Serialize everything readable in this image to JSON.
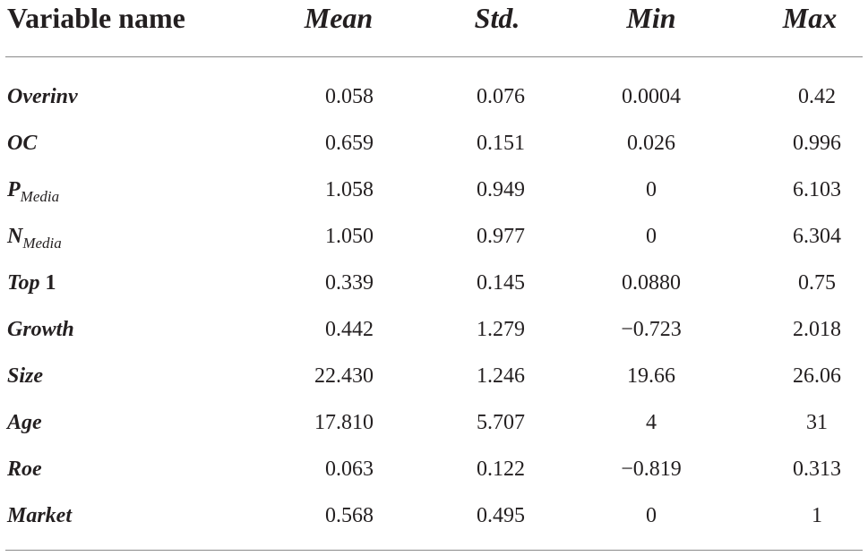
{
  "header": [
    "Variable name",
    "Mean",
    "Std.",
    "Min",
    "Max"
  ],
  "rows": [
    {
      "variable": {
        "main": "Overinv"
      },
      "values": [
        "0.058",
        "0.076",
        "0.0004",
        "0.42"
      ]
    },
    {
      "variable": {
        "main": "OC"
      },
      "values": [
        "0.659",
        "0.151",
        "0.026",
        "0.996"
      ]
    },
    {
      "variable": {
        "main": "P",
        "sub": "Media"
      },
      "values": [
        "1.058",
        "0.949",
        "0",
        "6.103"
      ]
    },
    {
      "variable": {
        "main": "N",
        "sub": "Media"
      },
      "values": [
        "1.050",
        "0.977",
        "0",
        "6.304"
      ]
    },
    {
      "variable": {
        "main": "Top",
        "num": "1"
      },
      "values": [
        "0.339",
        "0.145",
        "0.0880",
        "0.75"
      ]
    },
    {
      "variable": {
        "main": "Growth"
      },
      "values": [
        "0.442",
        "1.279",
        "−0.723",
        "2.018"
      ]
    },
    {
      "variable": {
        "main": "Size"
      },
      "values": [
        "22.430",
        "1.246",
        "19.66",
        "26.06"
      ]
    },
    {
      "variable": {
        "main": "Age"
      },
      "values": [
        "17.810",
        "5.707",
        "4",
        "31"
      ]
    },
    {
      "variable": {
        "main": "Roe"
      },
      "values": [
        "0.063",
        "0.122",
        "−0.819",
        "0.313"
      ]
    },
    {
      "variable": {
        "main": "Market"
      },
      "values": [
        "0.568",
        "0.495",
        "0",
        "1"
      ]
    }
  ]
}
